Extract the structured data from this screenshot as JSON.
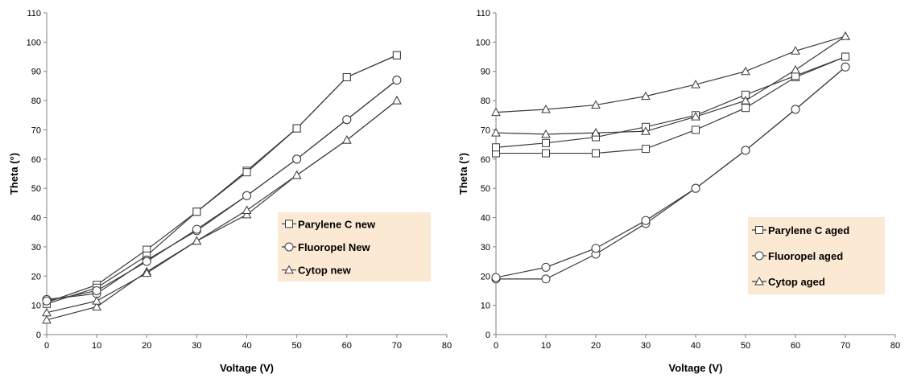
{
  "chart_data": [
    {
      "type": "line",
      "xlabel": "Voltage (V)",
      "ylabel": "Theta (°)",
      "xlim": [
        0,
        80
      ],
      "ylim": [
        0,
        110
      ],
      "xticks": [
        "0",
        "10",
        "20",
        "30",
        "40",
        "50",
        "60",
        "70",
        "80"
      ],
      "yticks": [
        "0",
        "10",
        "20",
        "30",
        "40",
        "50",
        "60",
        "70",
        "80",
        "90",
        "100",
        "110"
      ],
      "grid": false,
      "legend_position": "center-right",
      "legend_background": "#fbe9d3",
      "series": [
        {
          "name": "Parylene C new",
          "marker": "square",
          "x": [
            0,
            10,
            20,
            30,
            40,
            50,
            60,
            70
          ],
          "y": [
            11,
            17,
            29,
            42,
            56,
            70.5,
            88,
            95.5
          ]
        },
        {
          "name": "",
          "marker": "square",
          "x": [
            0,
            10,
            20,
            30,
            40,
            50,
            60,
            70
          ],
          "y": [
            10.5,
            16,
            27,
            42,
            55.5,
            70.5,
            88,
            95.5
          ]
        },
        {
          "name": "Fluoropel New",
          "marker": "circle",
          "x": [
            0,
            10,
            20,
            30,
            40,
            50,
            60,
            70
          ],
          "y": [
            12,
            14,
            25.5,
            35.5,
            47.5,
            60,
            73.5,
            87
          ]
        },
        {
          "name": "",
          "marker": "circle",
          "x": [
            0,
            10,
            20,
            30,
            40,
            50,
            60,
            70
          ],
          "y": [
            11.5,
            15,
            25,
            36,
            47.5,
            60,
            73.5,
            87
          ]
        },
        {
          "name": "Cytop new",
          "marker": "triangle",
          "x": [
            0,
            10,
            20,
            30,
            40,
            50,
            60,
            70
          ],
          "y": [
            5,
            9.5,
            21.5,
            32,
            41,
            54.5,
            66.5,
            80
          ]
        },
        {
          "name": "",
          "marker": "triangle",
          "x": [
            0,
            10,
            20,
            30,
            40,
            50,
            60,
            70
          ],
          "y": [
            7.5,
            11.5,
            21,
            32,
            42.5,
            54.5,
            66.5,
            80
          ]
        }
      ]
    },
    {
      "type": "line",
      "xlabel": "Voltage (V)",
      "ylabel": "Theta (°)",
      "xlim": [
        0,
        80
      ],
      "ylim": [
        0,
        110
      ],
      "xticks": [
        "0",
        "10",
        "20",
        "30",
        "40",
        "50",
        "60",
        "70",
        "80"
      ],
      "yticks": [
        "0",
        "10",
        "20",
        "30",
        "40",
        "50",
        "60",
        "70",
        "80",
        "90",
        "100",
        "110"
      ],
      "grid": false,
      "legend_position": "bottom-right",
      "legend_background": "#fbe9d3",
      "series": [
        {
          "name": "Parylene C aged",
          "marker": "square",
          "x": [
            0,
            10,
            20,
            30,
            40,
            50,
            60,
            70
          ],
          "y": [
            62,
            62,
            62,
            63.5,
            70,
            77.5,
            88,
            95
          ]
        },
        {
          "name": "",
          "marker": "square",
          "x": [
            0,
            10,
            20,
            30,
            40,
            50,
            60,
            70
          ],
          "y": [
            64,
            65.5,
            67.5,
            71,
            75,
            82,
            88.5,
            95
          ]
        },
        {
          "name": "Fluoropel aged",
          "marker": "circle",
          "x": [
            0,
            10,
            20,
            30,
            40,
            50,
            60,
            70
          ],
          "y": [
            19,
            19,
            27.5,
            38,
            50,
            63,
            77,
            91.5
          ]
        },
        {
          "name": "",
          "marker": "circle",
          "x": [
            0,
            10,
            20,
            30,
            40,
            50,
            60,
            70
          ],
          "y": [
            19.5,
            23,
            29.5,
            39,
            50,
            63,
            77,
            91.5
          ]
        },
        {
          "name": "Cytop aged",
          "marker": "triangle",
          "x": [
            0,
            10,
            20,
            30,
            40,
            50,
            60,
            70
          ],
          "y": [
            69,
            68.5,
            69,
            69.5,
            74.5,
            80,
            90.5,
            102
          ]
        },
        {
          "name": "",
          "marker": "triangle",
          "x": [
            0,
            10,
            20,
            30,
            40,
            50,
            60,
            70
          ],
          "y": [
            76,
            77,
            78.5,
            81.5,
            85.5,
            90,
            97,
            102
          ]
        }
      ]
    }
  ]
}
